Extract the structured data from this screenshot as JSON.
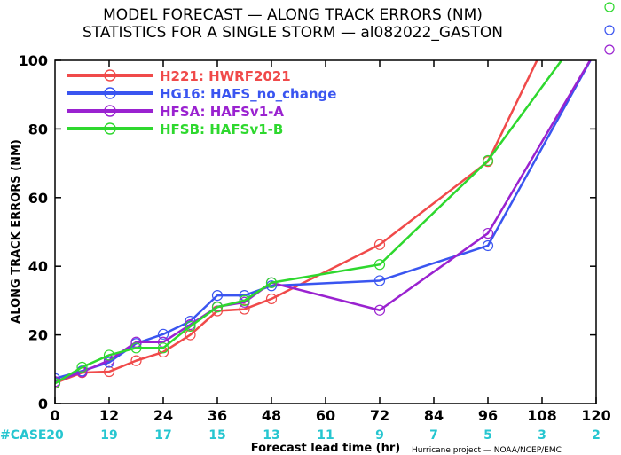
{
  "title_line1": "MODEL FORECAST — ALONG TRACK ERRORS (NM)",
  "title_line2": "STATISTICS FOR A SINGLE STORM — al082022_GASTON",
  "credit": "Hurricane project — NOAA/NCEP/EMC",
  "colors": {
    "red": "#f04a4a",
    "blue": "#3a55f0",
    "purple": "#9a22d0",
    "green": "#2ed82e",
    "case": "#26c6d0"
  },
  "chart_data": {
    "type": "line",
    "xlabel": "Forecast lead time (hr)",
    "ylabel": "ALONG TRACK ERRORS (NM)",
    "xlim": [
      0,
      120
    ],
    "ylim": [
      0,
      100
    ],
    "x_ticks": [
      0,
      12,
      24,
      36,
      48,
      60,
      72,
      84,
      96,
      108,
      120
    ],
    "y_ticks": [
      0,
      20,
      40,
      60,
      80,
      100
    ],
    "grid": false,
    "legend_position": "top-left",
    "case_label": "#CASE",
    "case_counts": [
      20,
      19,
      17,
      15,
      13,
      11,
      9,
      7,
      5,
      3,
      2
    ],
    "series": [
      {
        "name": "H221: HWRF2021",
        "color": "#f04a4a",
        "x": [
          0,
          6,
          12,
          18,
          24,
          30,
          36,
          42,
          48,
          72,
          96,
          108
        ],
        "y": [
          6.0,
          9.0,
          9.3,
          12.5,
          15.0,
          20.0,
          27.0,
          27.5,
          30.5,
          46.3,
          70.5,
          103
        ]
      },
      {
        "name": "HG16: HAFS_no_change",
        "color": "#3a55f0",
        "x": [
          0,
          6,
          12,
          18,
          24,
          30,
          36,
          42,
          48,
          72,
          96,
          120
        ],
        "y": [
          7.3,
          9.5,
          12.0,
          17.5,
          20.2,
          24.0,
          31.5,
          31.5,
          34.3,
          35.8,
          46.0,
          103
        ]
      },
      {
        "name": "HFSA: HAFSv1-A",
        "color": "#9a22d0",
        "x": [
          0,
          6,
          12,
          18,
          24,
          30,
          36,
          42,
          48,
          72,
          96,
          120
        ],
        "y": [
          6.4,
          9.2,
          12.6,
          17.9,
          17.9,
          23.0,
          28.2,
          29.5,
          35.2,
          27.2,
          49.6,
          103
        ]
      },
      {
        "name": "HFSB: HAFSv1-B",
        "color": "#2ed82e",
        "x": [
          0,
          6,
          12,
          18,
          24,
          30,
          36,
          42,
          48,
          72,
          96,
          114
        ],
        "y": [
          5.9,
          10.6,
          14.1,
          16.2,
          16.2,
          22.5,
          28.1,
          30.0,
          35.2,
          40.5,
          70.8,
          103
        ]
      }
    ]
  }
}
